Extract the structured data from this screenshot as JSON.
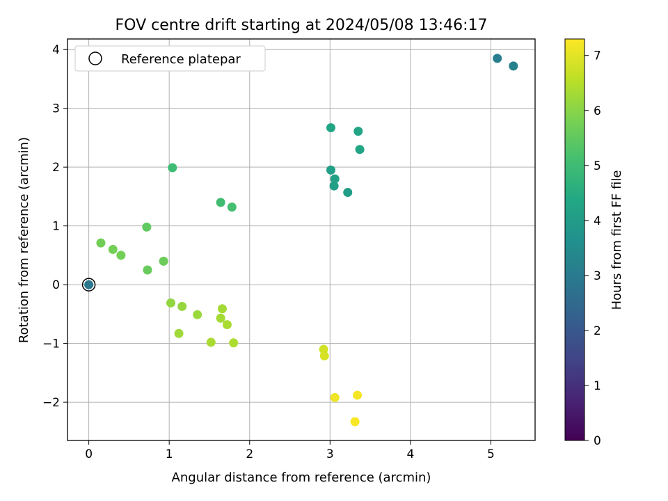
{
  "chart_data": {
    "type": "scatter",
    "title": "FOV centre drift starting at 2024/05/08 13:46:17",
    "xlabel": "Angular distance from reference (arcmin)",
    "ylabel": "Rotation from reference (arcmin)",
    "xlim": [
      -0.265,
      5.55
    ],
    "ylim": [
      -2.65,
      4.18
    ],
    "xticks": [
      0,
      1,
      2,
      3,
      4,
      5
    ],
    "yticks": [
      -2,
      -1,
      0,
      1,
      2,
      3,
      4
    ],
    "grid": true,
    "legend": {
      "position": "top-left",
      "entries": [
        "Reference platepar"
      ]
    },
    "colorbar": {
      "label": "Hours from first FF file",
      "range": [
        0,
        7.3
      ],
      "ticks": [
        0,
        1,
        2,
        3,
        4,
        5,
        6,
        7
      ],
      "colormap": "viridis"
    },
    "reference_point": {
      "x": 0,
      "y": 0
    },
    "points": [
      {
        "x": 0.0,
        "y": 0.0,
        "hours": 2.9
      },
      {
        "x": 5.08,
        "y": 3.85,
        "hours": 3.1
      },
      {
        "x": 5.28,
        "y": 3.72,
        "hours": 3.15
      },
      {
        "x": 3.01,
        "y": 2.67,
        "hours": 4.3
      },
      {
        "x": 3.35,
        "y": 2.61,
        "hours": 4.25
      },
      {
        "x": 3.37,
        "y": 2.3,
        "hours": 4.3
      },
      {
        "x": 3.01,
        "y": 1.95,
        "hours": 4.1
      },
      {
        "x": 3.06,
        "y": 1.8,
        "hours": 4.15
      },
      {
        "x": 3.05,
        "y": 1.68,
        "hours": 4.1
      },
      {
        "x": 3.22,
        "y": 1.57,
        "hours": 4.05
      },
      {
        "x": 1.04,
        "y": 1.99,
        "hours": 5.0
      },
      {
        "x": 1.64,
        "y": 1.4,
        "hours": 5.05
      },
      {
        "x": 1.78,
        "y": 1.32,
        "hours": 5.1
      },
      {
        "x": 0.72,
        "y": 0.98,
        "hours": 5.5
      },
      {
        "x": 0.15,
        "y": 0.71,
        "hours": 5.7
      },
      {
        "x": 0.3,
        "y": 0.6,
        "hours": 5.75
      },
      {
        "x": 0.4,
        "y": 0.5,
        "hours": 5.75
      },
      {
        "x": 0.93,
        "y": 0.4,
        "hours": 5.65
      },
      {
        "x": 0.73,
        "y": 0.25,
        "hours": 5.6
      },
      {
        "x": 1.02,
        "y": -0.31,
        "hours": 6.1
      },
      {
        "x": 1.16,
        "y": -0.37,
        "hours": 6.15
      },
      {
        "x": 1.35,
        "y": -0.51,
        "hours": 6.2
      },
      {
        "x": 1.66,
        "y": -0.41,
        "hours": 6.3
      },
      {
        "x": 1.64,
        "y": -0.57,
        "hours": 6.3
      },
      {
        "x": 1.72,
        "y": -0.68,
        "hours": 6.35
      },
      {
        "x": 1.12,
        "y": -0.83,
        "hours": 6.25
      },
      {
        "x": 1.52,
        "y": -0.98,
        "hours": 6.35
      },
      {
        "x": 1.8,
        "y": -0.99,
        "hours": 6.4
      },
      {
        "x": 2.92,
        "y": -1.1,
        "hours": 6.8
      },
      {
        "x": 2.93,
        "y": -1.21,
        "hours": 6.85
      },
      {
        "x": 3.06,
        "y": -1.92,
        "hours": 7.15
      },
      {
        "x": 3.34,
        "y": -1.88,
        "hours": 7.2
      },
      {
        "x": 3.31,
        "y": -2.33,
        "hours": 7.25
      }
    ]
  }
}
